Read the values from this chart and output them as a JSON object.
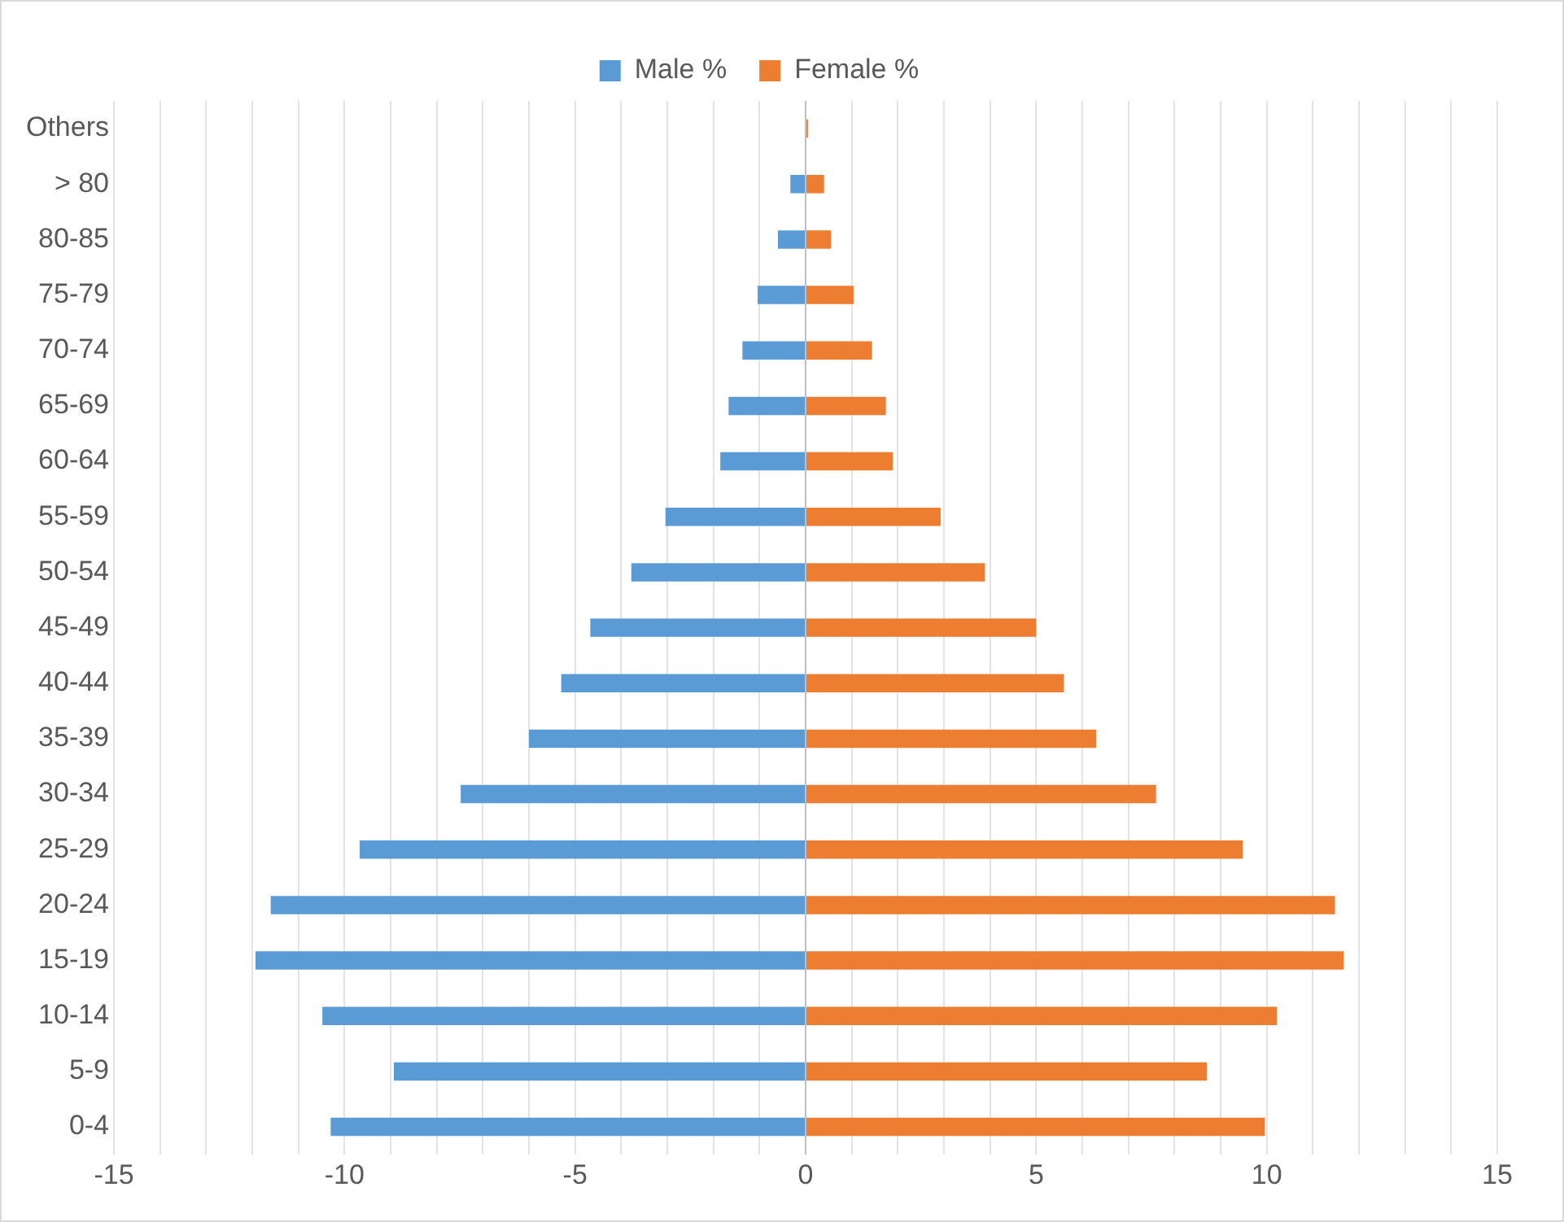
{
  "chart_data": {
    "type": "bar",
    "orientation": "horizontal",
    "categories": [
      "Others",
      "> 80",
      "80-85",
      "75-79",
      "70-74",
      "65-69",
      "60-64",
      "55-59",
      "50-54",
      "45-49",
      "40-44",
      "35-39",
      "30-34",
      "25-29",
      "20-24",
      "15-19",
      "10-14",
      "5-9",
      "0-4"
    ],
    "series": [
      {
        "name": "Male %",
        "color": "#5b9bd5",
        "values": [
          null,
          -0.33,
          -0.6,
          -1.04,
          -1.37,
          -1.67,
          -1.85,
          -3.04,
          -3.78,
          -4.67,
          -5.3,
          -6.0,
          -7.48,
          -9.67,
          -11.6,
          -11.93,
          -10.48,
          -8.93,
          -10.3
        ]
      },
      {
        "name": "Female %",
        "color": "#ed7d31",
        "values": [
          0.05,
          0.4,
          0.55,
          1.04,
          1.44,
          1.74,
          1.89,
          2.93,
          3.89,
          5.0,
          5.6,
          6.3,
          7.6,
          9.48,
          11.48,
          11.67,
          10.22,
          8.7,
          9.96
        ]
      }
    ],
    "xlim": [
      -15,
      15
    ],
    "xticks": [
      -15,
      {
        "value": -14,
        "label": null
      },
      {
        "value": -13,
        "label": null
      },
      {
        "value": -12,
        "label": null
      },
      {
        "value": -11,
        "label": null
      },
      -10,
      {
        "value": -9,
        "label": null
      },
      {
        "value": -8,
        "label": null
      },
      {
        "value": -7,
        "label": null
      },
      {
        "value": -6,
        "label": null
      },
      -5,
      {
        "value": -4,
        "label": null
      },
      {
        "value": -3,
        "label": null
      },
      {
        "value": -2,
        "label": null
      },
      {
        "value": -1,
        "label": null
      },
      0,
      {
        "value": 1,
        "label": null
      },
      {
        "value": 2,
        "label": null
      },
      {
        "value": 3,
        "label": null
      },
      {
        "value": 4,
        "label": null
      },
      5,
      {
        "value": 6,
        "label": null
      },
      {
        "value": 7,
        "label": null
      },
      {
        "value": 8,
        "label": null
      },
      {
        "value": 9,
        "label": null
      },
      10,
      {
        "value": 11,
        "label": null
      },
      {
        "value": 12,
        "label": null
      },
      {
        "value": 13,
        "label": null
      },
      {
        "value": 14,
        "label": null
      },
      15
    ],
    "grid": "x",
    "legend": "top",
    "stacked": true
  }
}
